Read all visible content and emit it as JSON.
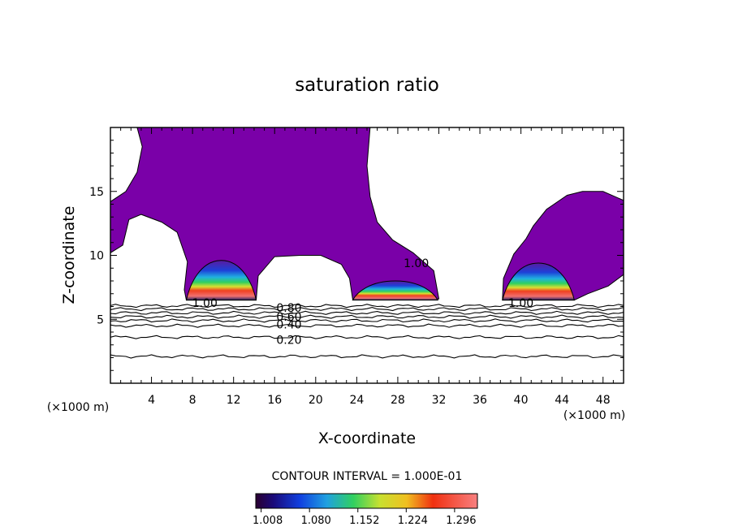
{
  "chart_data": {
    "type": "heatmap",
    "title": "saturation ratio",
    "xlabel": "X-coordinate",
    "ylabel": "Z-coordinate",
    "x_unit_left": "(×1000 m)",
    "x_unit_right": "(×1000 m)",
    "xlim": [
      0,
      50
    ],
    "ylim": [
      0,
      20
    ],
    "xticks": [
      4,
      8,
      12,
      16,
      20,
      24,
      28,
      32,
      36,
      40,
      44,
      48
    ],
    "yticks": [
      5,
      10,
      15
    ],
    "contour_interval_text": "CONTOUR INTERVAL = 1.000E-01",
    "colorbar": {
      "range": [
        1.0,
        1.33
      ],
      "tick_values": [
        1.008,
        1.08,
        1.152,
        1.224,
        1.296
      ],
      "tick_labels": [
        "1.008",
        "1.080",
        "1.152",
        "1.224",
        "1.296"
      ]
    },
    "contour_labels": [
      {
        "text": "1.00",
        "x": 9.2,
        "y": 6.3
      },
      {
        "text": "1.00",
        "x": 40.0,
        "y": 6.3
      },
      {
        "text": "1.00",
        "x": 29.8,
        "y": 9.4
      },
      {
        "text": "0.80",
        "x": 17.4,
        "y": 5.9
      },
      {
        "text": "0.60",
        "x": 17.4,
        "y": 5.2
      },
      {
        "text": "0.40",
        "x": 17.4,
        "y": 4.6
      },
      {
        "text": "0.20",
        "x": 17.4,
        "y": 3.4
      }
    ],
    "isolines": [
      {
        "value": 0.2,
        "y": 3.6
      },
      {
        "value": 0.1,
        "y": 2.1
      },
      {
        "value": 0.4,
        "y": 4.5
      },
      {
        "value": 0.5,
        "y": 4.9
      },
      {
        "value": 0.6,
        "y": 5.2
      },
      {
        "value": 0.7,
        "y": 5.5
      },
      {
        "value": 0.8,
        "y": 5.8
      },
      {
        "value": 0.9,
        "y": 6.05
      }
    ],
    "supersaturated_region": {
      "value": 1.008,
      "color": "#7a00a8",
      "outline": [
        [
          2.6,
          20
        ],
        [
          3.1,
          18.5
        ],
        [
          2.6,
          16.5
        ],
        [
          1.5,
          15
        ],
        [
          0,
          14.2
        ],
        [
          0,
          10.2
        ],
        [
          1.2,
          10.8
        ],
        [
          1.8,
          12.8
        ],
        [
          3.0,
          13.2
        ],
        [
          5.0,
          12.6
        ],
        [
          6.5,
          11.8
        ],
        [
          7.5,
          9.5
        ],
        [
          7.2,
          7.3
        ],
        [
          7.4,
          6.5
        ],
        [
          14.2,
          6.5
        ],
        [
          14.4,
          8.4
        ],
        [
          16.0,
          9.9
        ],
        [
          18.5,
          10.0
        ],
        [
          20.5,
          10.0
        ],
        [
          22.5,
          9.3
        ],
        [
          23.3,
          8.2
        ],
        [
          23.6,
          6.6
        ],
        [
          32.0,
          6.6
        ],
        [
          31.5,
          8.8
        ],
        [
          29.5,
          10.2
        ],
        [
          27.5,
          11.2
        ],
        [
          26.0,
          12.6
        ],
        [
          25.3,
          14.6
        ],
        [
          25.0,
          17.0
        ],
        [
          25.3,
          20
        ],
        [
          2.6,
          20
        ]
      ]
    },
    "supersaturated_region_2": {
      "value": 1.008,
      "color": "#7a00a8",
      "outline": [
        [
          38.2,
          6.5
        ],
        [
          45.2,
          6.5
        ],
        [
          46.5,
          7.0
        ],
        [
          48.5,
          7.6
        ],
        [
          50,
          8.5
        ],
        [
          50,
          14.3
        ],
        [
          48.0,
          15.0
        ],
        [
          46.0,
          15.0
        ],
        [
          44.5,
          14.7
        ],
        [
          42.5,
          13.6
        ],
        [
          41.2,
          12.3
        ],
        [
          40.5,
          11.3
        ],
        [
          39.3,
          10.1
        ],
        [
          38.3,
          8.2
        ],
        [
          38.2,
          6.5
        ]
      ]
    },
    "cloud_cores": [
      {
        "x0": 7.4,
        "x1": 14.2,
        "top": 9.6,
        "peak": 1.33
      },
      {
        "x0": 23.6,
        "x1": 31.9,
        "top": 8.0,
        "peak": 1.33
      },
      {
        "x0": 38.2,
        "x1": 45.2,
        "top": 9.4,
        "peak": 1.33
      }
    ]
  }
}
